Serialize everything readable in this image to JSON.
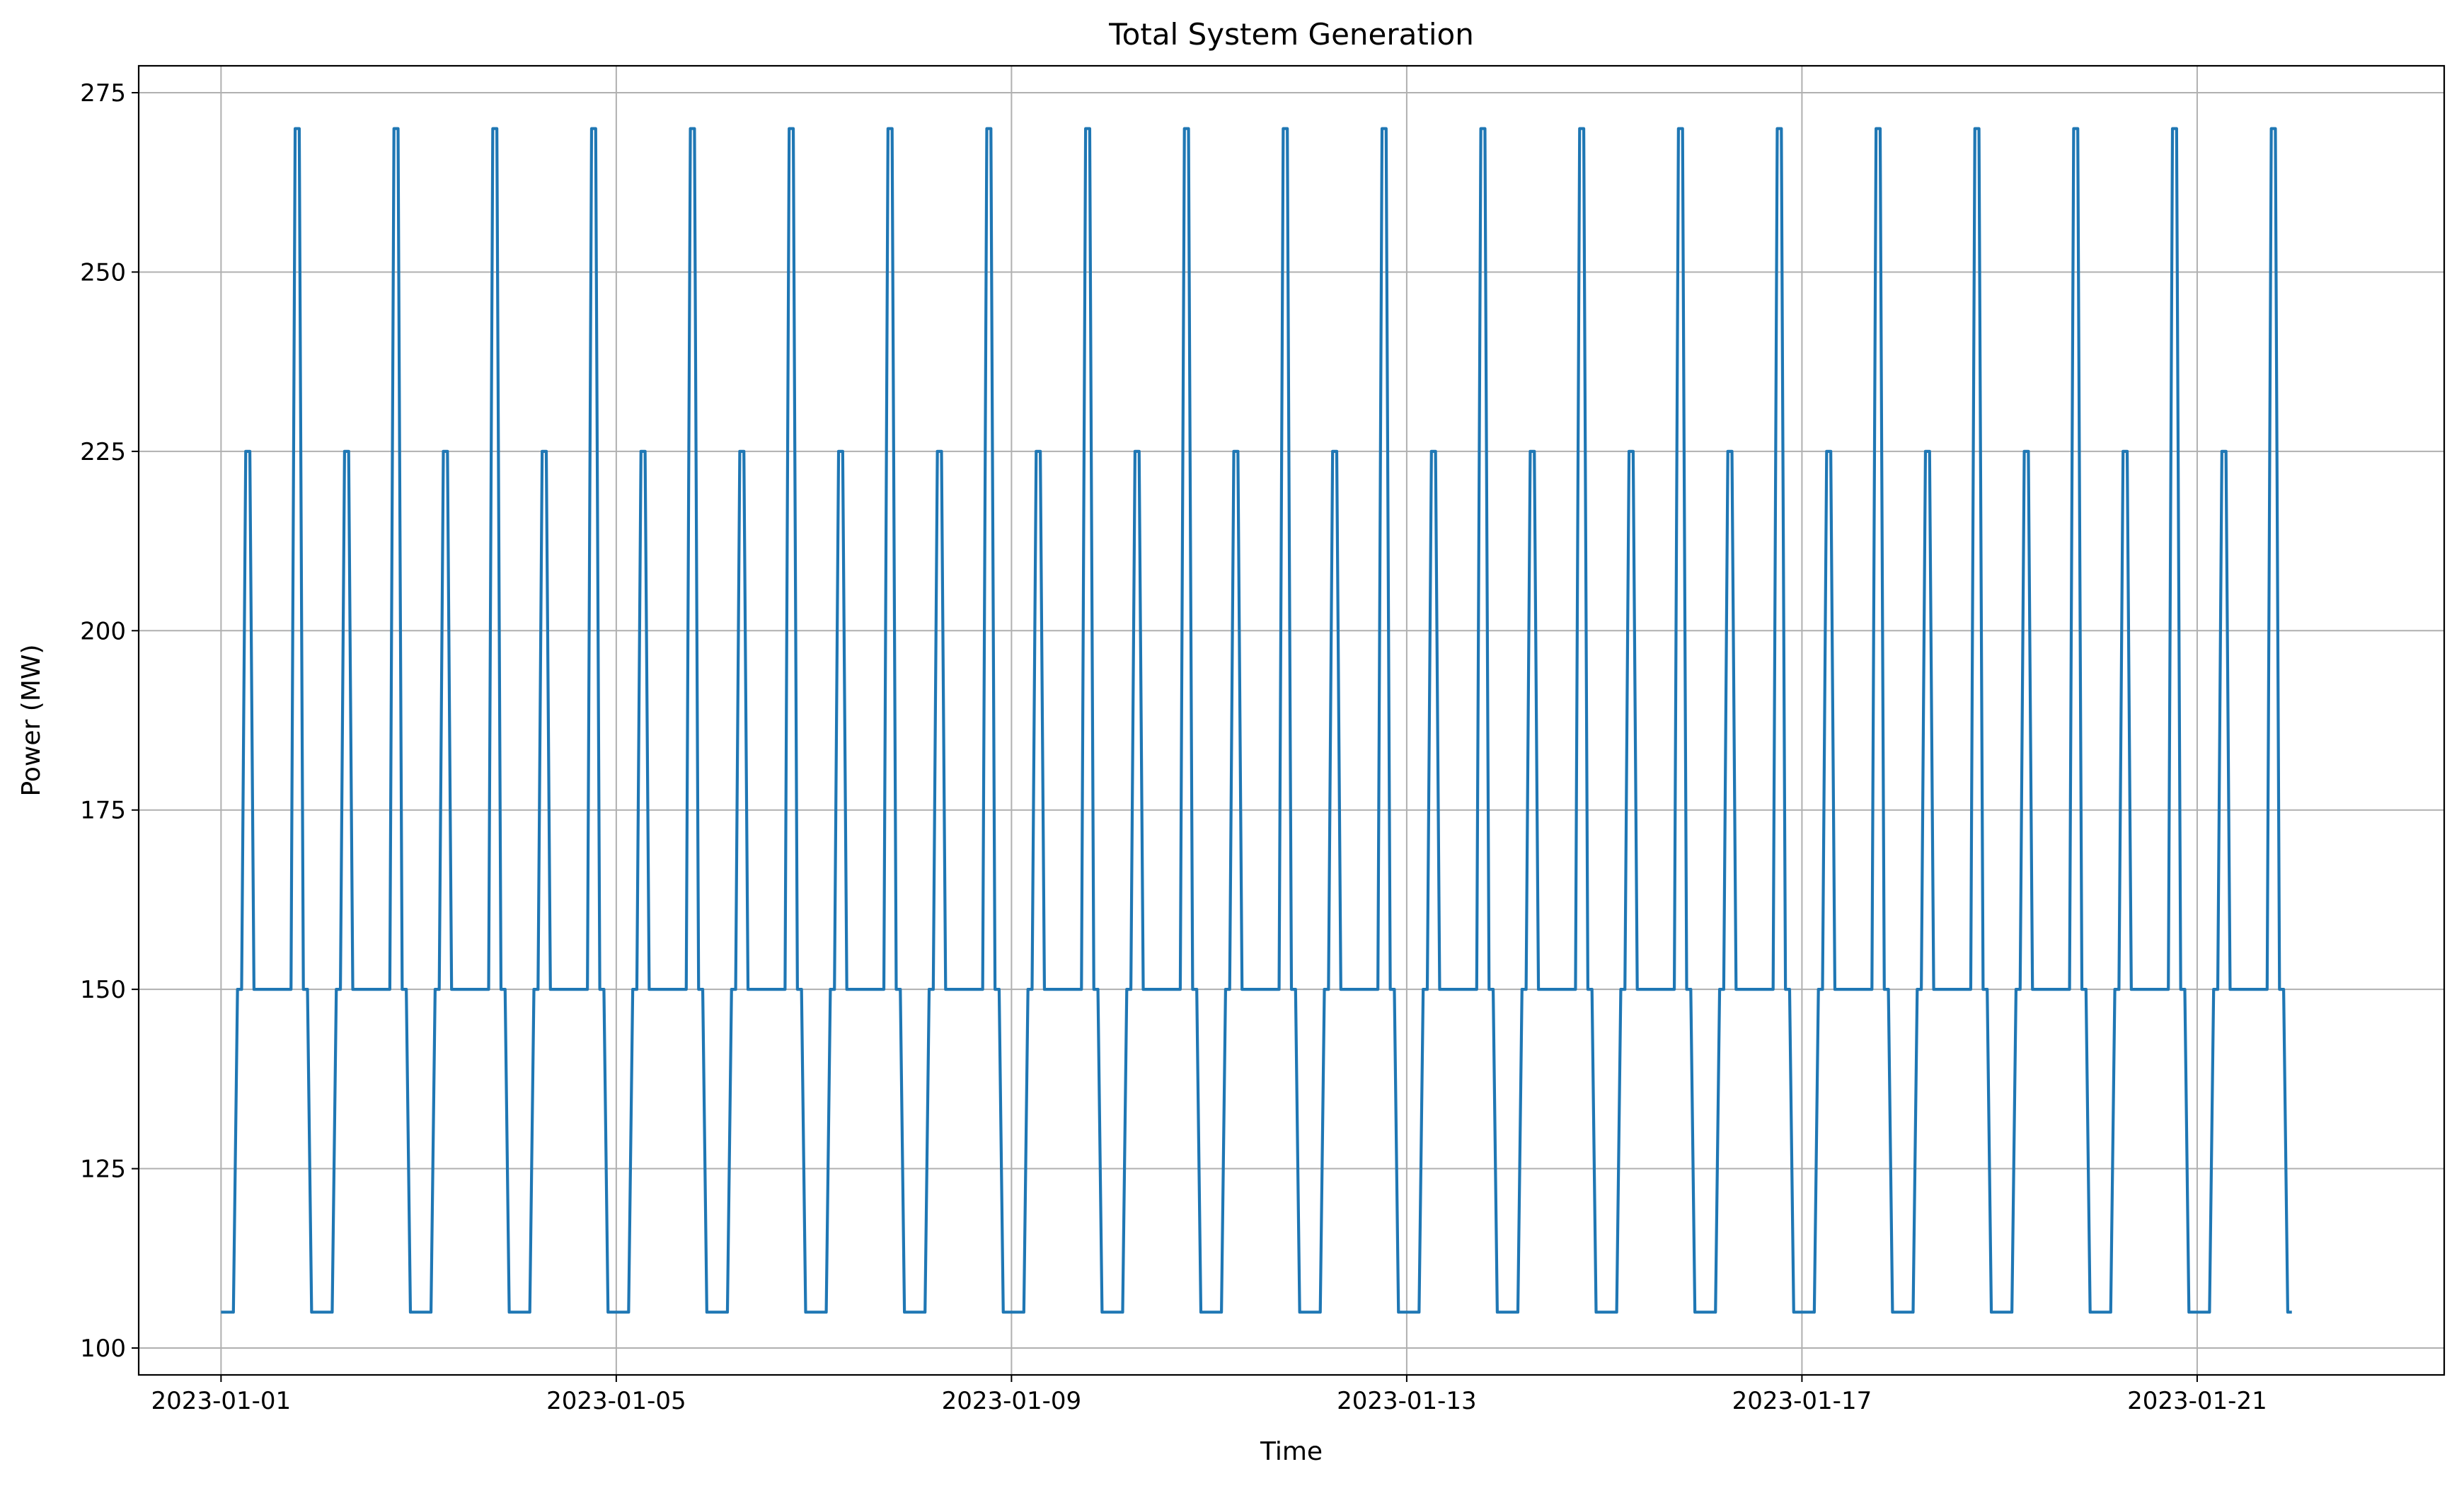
{
  "chart_data": {
    "type": "line",
    "title": "Total System Generation",
    "xlabel": "Time",
    "ylabel": "Power (MW)",
    "x_axis": {
      "type": "date",
      "range": [
        "2022-12-31T04:00",
        "2023-01-23T12:00"
      ],
      "ticks": [
        "2023-01-01",
        "2023-01-05",
        "2023-01-09",
        "2023-01-13",
        "2023-01-17",
        "2023-01-21"
      ]
    },
    "ylim": [
      96.25,
      278.75
    ],
    "yticks": [
      100,
      125,
      150,
      175,
      200,
      225,
      250,
      275
    ],
    "grid": true,
    "series": [
      {
        "color": "#1f77b4",
        "x_start": "2023-01-01T00:00",
        "x_end": "2023-01-21T23:00",
        "x_step": "1h",
        "daily_profile": [
          105,
          105,
          105,
          105,
          150,
          150,
          225,
          225,
          150,
          150,
          150,
          150,
          150,
          150,
          150,
          150,
          150,
          150,
          270,
          270,
          150,
          150,
          105,
          105
        ]
      }
    ]
  }
}
